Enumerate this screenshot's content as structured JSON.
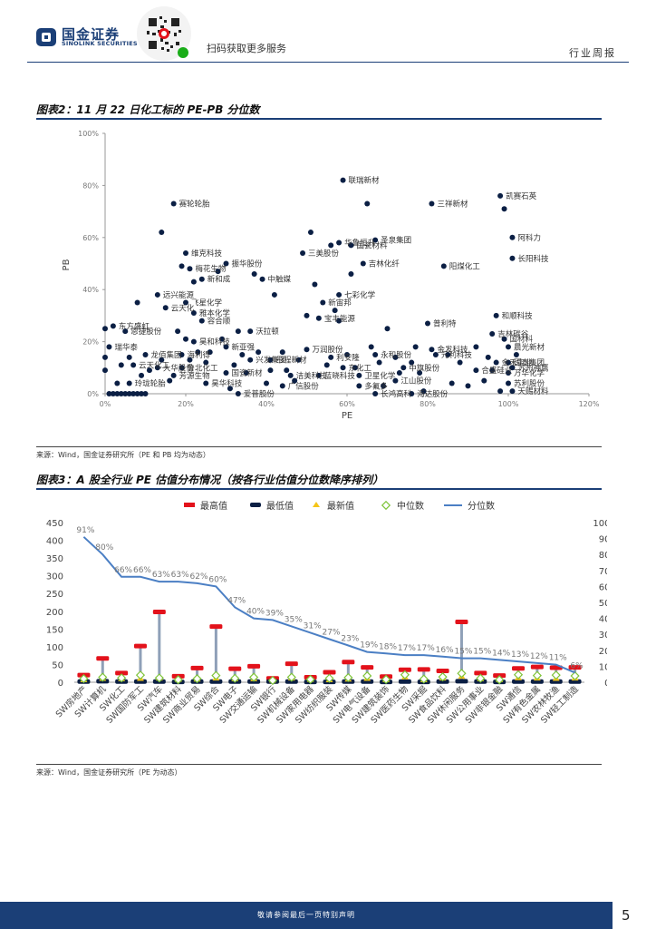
{
  "header": {
    "brand_cn": "国金证券",
    "brand_en": "SINOLINK SECURITIES",
    "qr_text": "扫码获取更多服务",
    "report_type": "行业周报"
  },
  "figure2": {
    "title": "图表2：11 月 22 日化工标的 PE-PB 分位数",
    "source": "来源：Wind，国金证券研究所（PE 和 PB 均为动态）"
  },
  "figure3": {
    "title": "图表3：A 股全行业 PE 估值分布情况（按各行业估值分位数降序排列）",
    "source": "来源：Wind，国金证券研究所（PE 为动态）"
  },
  "footer": {
    "disclaimer": "敬请参阅最后一页特别声明",
    "page": "5"
  },
  "colors": {
    "brand": "#1b3f77",
    "dot": "#0b1f44",
    "max": "#e3121b",
    "median": "#7ec43a",
    "latest": "#f5c518",
    "line": "#4b7fc4"
  },
  "chart_data": [
    {
      "type": "scatter",
      "title": "11 月 22 日化工标的 PE-PB 分位数",
      "xlabel": "PE",
      "ylabel": "PB",
      "xlim": [
        0,
        120
      ],
      "ylim": [
        0,
        100
      ],
      "x_ticks": [
        "0%",
        "20%",
        "40%",
        "60%",
        "80%",
        "100%",
        "120%"
      ],
      "y_ticks": [
        "0%",
        "20%",
        "40%",
        "60%",
        "80%",
        "100%"
      ],
      "labeled_points": [
        {
          "name": "联瑞新材",
          "x": 59,
          "y": 82
        },
        {
          "name": "凯赛石英",
          "x": 98,
          "y": 76
        },
        {
          "name": "三祥新材",
          "x": 81,
          "y": 73
        },
        {
          "name": "赛轮轮胎",
          "x": 17,
          "y": 73
        },
        {
          "name": "阿科力",
          "x": 101,
          "y": 60
        },
        {
          "name": "圣泉集团",
          "x": 67,
          "y": 59
        },
        {
          "name": "华鲁恒升",
          "x": 58,
          "y": 58
        },
        {
          "name": "国瓷材料",
          "x": 61,
          "y": 57
        },
        {
          "name": "三美股份",
          "x": 49,
          "y": 54
        },
        {
          "name": "长阳科技",
          "x": 101,
          "y": 52
        },
        {
          "name": "维克科技",
          "x": 20,
          "y": 54
        },
        {
          "name": "吉林化纤",
          "x": 64,
          "y": 50
        },
        {
          "name": "阳煤化工",
          "x": 84,
          "y": 49
        },
        {
          "name": "振华股份",
          "x": 30,
          "y": 50
        },
        {
          "name": "梅花生物",
          "x": 21,
          "y": 48
        },
        {
          "name": "新和成",
          "x": 24,
          "y": 44
        },
        {
          "name": "中触媒",
          "x": 39,
          "y": 44
        },
        {
          "name": "远兴能源",
          "x": 13,
          "y": 38
        },
        {
          "name": "飞星化学",
          "x": 20,
          "y": 35
        },
        {
          "name": "七彩化学",
          "x": 58,
          "y": 38
        },
        {
          "name": "新宙邦",
          "x": 54,
          "y": 35
        },
        {
          "name": "云天化",
          "x": 15,
          "y": 33
        },
        {
          "name": "雅本化学",
          "x": 22,
          "y": 31
        },
        {
          "name": "宝丰能源",
          "x": 53,
          "y": 29
        },
        {
          "name": "和顺科技",
          "x": 97,
          "y": 30
        },
        {
          "name": "普利特",
          "x": 80,
          "y": 27
        },
        {
          "name": "容合顺",
          "x": 24,
          "y": 28
        },
        {
          "name": "东方盛虹",
          "x": 2,
          "y": 26
        },
        {
          "name": "恩捷股份",
          "x": 5,
          "y": 24
        },
        {
          "name": "沃拉顿",
          "x": 36,
          "y": 24
        },
        {
          "name": "吉林碳谷",
          "x": 96,
          "y": 23
        },
        {
          "name": "国材料",
          "x": 99,
          "y": 21
        },
        {
          "name": "瑞华泰",
          "x": 1,
          "y": 18
        },
        {
          "name": "晨光新材",
          "x": 100,
          "y": 18
        },
        {
          "name": "昊和科技",
          "x": 22,
          "y": 20
        },
        {
          "name": "新亚强",
          "x": 30,
          "y": 18
        },
        {
          "name": "万润股份",
          "x": 50,
          "y": 17
        },
        {
          "name": "永和股份",
          "x": 67,
          "y": 15
        },
        {
          "name": "金发科技",
          "x": 81,
          "y": 17
        },
        {
          "name": "元利科技",
          "x": 82,
          "y": 15
        },
        {
          "name": "龙佰集团",
          "x": 10,
          "y": 15
        },
        {
          "name": "海利得",
          "x": 19,
          "y": 15
        },
        {
          "name": "云天化工",
          "x": 7,
          "y": 11
        },
        {
          "name": "大华股份",
          "x": 13,
          "y": 10
        },
        {
          "name": "兴发集团",
          "x": 36,
          "y": 13
        },
        {
          "name": "彤程新材",
          "x": 41,
          "y": 13
        },
        {
          "name": "利安隆",
          "x": 56,
          "y": 14
        },
        {
          "name": "金禾实业",
          "x": 97,
          "y": 12
        },
        {
          "name": "国泰集团",
          "x": 100,
          "y": 12
        },
        {
          "name": "中旗股份",
          "x": 74,
          "y": 10
        },
        {
          "name": "东化工",
          "x": 59,
          "y": 10
        },
        {
          "name": "合盛硅业",
          "x": 92,
          "y": 9
        },
        {
          "name": "苏州神鹰",
          "x": 101,
          "y": 10
        },
        {
          "name": "万华化学",
          "x": 100,
          "y": 8
        },
        {
          "name": "鲁北化工",
          "x": 19,
          "y": 10
        },
        {
          "name": "芳源生物",
          "x": 17,
          "y": 7
        },
        {
          "name": "国瓷新材",
          "x": 30,
          "y": 8
        },
        {
          "name": "洁美科技",
          "x": 46,
          "y": 7
        },
        {
          "name": "蓝晓科技",
          "x": 53,
          "y": 7
        },
        {
          "name": "卫星化学",
          "x": 63,
          "y": 7
        },
        {
          "name": "江山股份",
          "x": 72,
          "y": 5
        },
        {
          "name": "玲珑轮胎",
          "x": 6,
          "y": 4
        },
        {
          "name": "昊华科技",
          "x": 25,
          "y": 4
        },
        {
          "name": "广信股份",
          "x": 44,
          "y": 3
        },
        {
          "name": "多氟多",
          "x": 63,
          "y": 3
        },
        {
          "name": "苏利股份",
          "x": 100,
          "y": 4
        },
        {
          "name": "天赐材料",
          "x": 101,
          "y": 1
        },
        {
          "name": "爱普股份",
          "x": 33,
          "y": 0
        },
        {
          "name": "长鸿高科",
          "x": 67,
          "y": 0
        },
        {
          "name": "海达股份",
          "x": 76,
          "y": 0
        }
      ],
      "unlabeled_points": [
        [
          1,
          0
        ],
        [
          2,
          0
        ],
        [
          3,
          0
        ],
        [
          4,
          0
        ],
        [
          5,
          0
        ],
        [
          6,
          0
        ],
        [
          7,
          0
        ],
        [
          8,
          0
        ],
        [
          9,
          0
        ],
        [
          10,
          0
        ],
        [
          0,
          9
        ],
        [
          0,
          14
        ],
        [
          0,
          25
        ],
        [
          3,
          4
        ],
        [
          4,
          11
        ],
        [
          6,
          14
        ],
        [
          8,
          35
        ],
        [
          9,
          7
        ],
        [
          11,
          9
        ],
        [
          14,
          13
        ],
        [
          14,
          62
        ],
        [
          16,
          5
        ],
        [
          18,
          24
        ],
        [
          19,
          49
        ],
        [
          20,
          21
        ],
        [
          21,
          13
        ],
        [
          22,
          43
        ],
        [
          23,
          16
        ],
        [
          25,
          12
        ],
        [
          26,
          16
        ],
        [
          28,
          47
        ],
        [
          29,
          21
        ],
        [
          31,
          2
        ],
        [
          32,
          11
        ],
        [
          33,
          24
        ],
        [
          34,
          15
        ],
        [
          35,
          8
        ],
        [
          37,
          46
        ],
        [
          38,
          16
        ],
        [
          40,
          4
        ],
        [
          41,
          9
        ],
        [
          42,
          38
        ],
        [
          44,
          16
        ],
        [
          45,
          9
        ],
        [
          47,
          5
        ],
        [
          48,
          13
        ],
        [
          50,
          30
        ],
        [
          51,
          62
        ],
        [
          52,
          42
        ],
        [
          55,
          11
        ],
        [
          56,
          57
        ],
        [
          57,
          32
        ],
        [
          58,
          28
        ],
        [
          60,
          15
        ],
        [
          61,
          46
        ],
        [
          62,
          10
        ],
        [
          65,
          73
        ],
        [
          66,
          18
        ],
        [
          68,
          12
        ],
        [
          69,
          3
        ],
        [
          70,
          25
        ],
        [
          72,
          14
        ],
        [
          73,
          8
        ],
        [
          76,
          12
        ],
        [
          77,
          18
        ],
        [
          78,
          8
        ],
        [
          79,
          1
        ],
        [
          85,
          15
        ],
        [
          86,
          4
        ],
        [
          88,
          12
        ],
        [
          90,
          3
        ],
        [
          92,
          18
        ],
        [
          94,
          5
        ],
        [
          95,
          14
        ],
        [
          96,
          9
        ],
        [
          99,
          71
        ],
        [
          98,
          1
        ],
        [
          102,
          15
        ]
      ]
    },
    {
      "type": "bar",
      "title": "A 股全行业 PE 估值分布情况",
      "legend": [
        "最高值",
        "最低值",
        "最新值",
        "中位数",
        "分位数"
      ],
      "categories": [
        "SW房地产",
        "SW计算机",
        "SW化工",
        "SW国防军工",
        "SW汽车",
        "SW建筑材料",
        "SW商业贸易",
        "SW综合",
        "SW电子",
        "SW交通运输",
        "SW银行",
        "SW机械设备",
        "SW家用电器",
        "SW纺织服装",
        "SW传媒",
        "SW电气设备",
        "SW建筑装饰",
        "SW医药生物",
        "SW采掘",
        "SW食品饮料",
        "SW休闲服务",
        "SW公用事业",
        "SW非银金融",
        "SW通信",
        "SW有色金属",
        "SW农林牧渔",
        "SW轻工制造"
      ],
      "max": [
        20,
        67,
        26,
        102,
        198,
        17,
        40,
        157,
        38,
        45,
        11,
        52,
        14,
        28,
        57,
        42,
        16,
        35,
        36,
        32,
        170,
        26,
        19,
        39,
        43,
        41,
        42
      ],
      "min": [
        2,
        3,
        2,
        2,
        2,
        1,
        2,
        2,
        2,
        2,
        2,
        2,
        1,
        1,
        2,
        2,
        1,
        2,
        1,
        2,
        3,
        2,
        1,
        2,
        2,
        2,
        2
      ],
      "latest": [
        5,
        9,
        8,
        9,
        10,
        6,
        7,
        10,
        8,
        8,
        4,
        10,
        6,
        5,
        7,
        9,
        5,
        13,
        5,
        10,
        15,
        8,
        5,
        11,
        10,
        9,
        10
      ],
      "median": [
        10,
        14,
        12,
        20,
        12,
        7,
        10,
        19,
        11,
        14,
        5,
        14,
        8,
        11,
        13,
        18,
        8,
        21,
        9,
        15,
        25,
        11,
        7,
        21,
        19,
        20,
        18
      ],
      "percentile_labels": [
        "91%",
        "80%",
        "66%",
        "66%",
        "63%",
        "63%",
        "62%",
        "60%",
        "47%",
        "40%",
        "39%",
        "35%",
        "31%",
        "27%",
        "23%",
        "19%",
        "18%",
        "17%",
        "17%",
        "16%",
        "15%",
        "15%",
        "14%",
        "13%",
        "12%",
        "11%",
        "6%"
      ],
      "percentile": [
        91,
        80,
        66,
        66,
        63,
        63,
        62,
        60,
        47,
        40,
        39,
        35,
        31,
        27,
        23,
        19,
        18,
        17,
        17,
        16,
        15,
        15,
        14,
        13,
        12,
        11,
        6
      ],
      "y_left": [
        0,
        450
      ],
      "y_left_ticks": [
        "0",
        "50",
        "100",
        "150",
        "200",
        "250",
        "300",
        "350",
        "400",
        "450"
      ],
      "y_right": [
        0,
        100
      ],
      "y_right_ticks": [
        "0%",
        "10%",
        "20%",
        "30%",
        "40%",
        "50%",
        "60%",
        "70%",
        "80%",
        "90%",
        "100%"
      ]
    }
  ]
}
